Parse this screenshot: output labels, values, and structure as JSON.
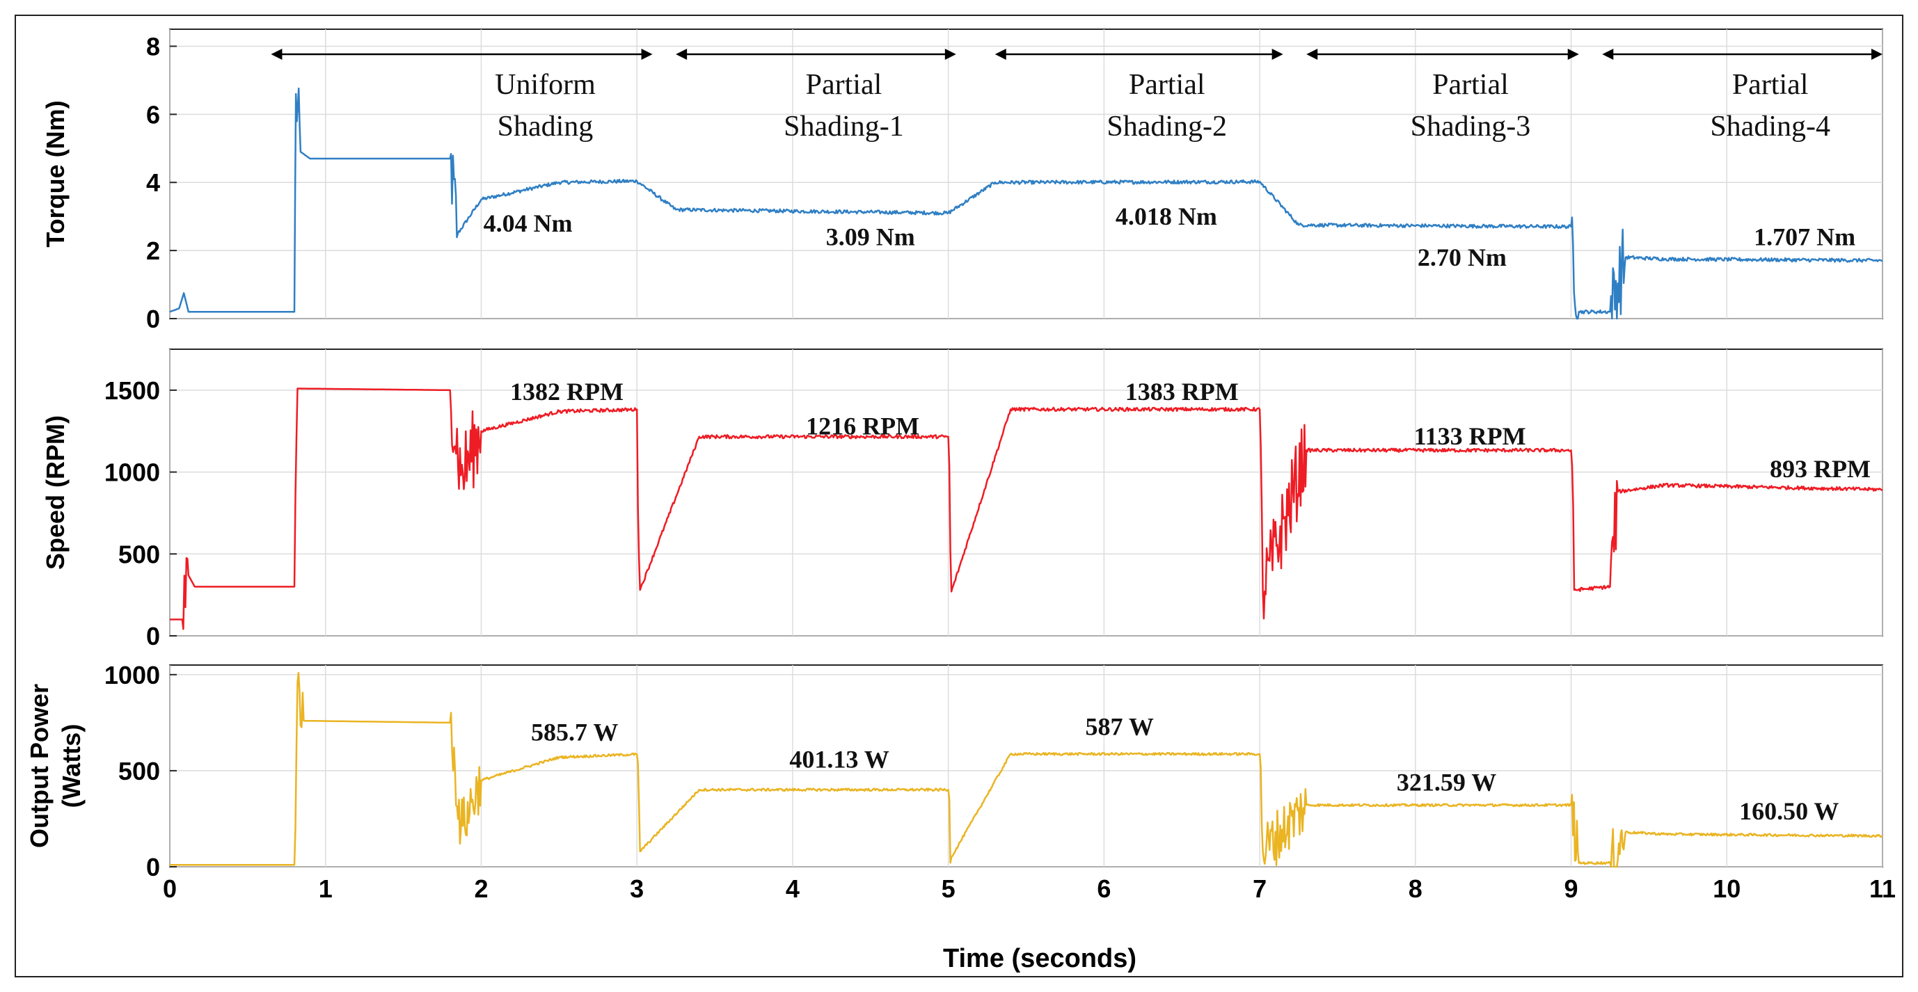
{
  "chart_data": {
    "type": "line",
    "xlabel": "Time (seconds)",
    "xlim": [
      0,
      11
    ],
    "xticks": [
      0,
      1,
      2,
      3,
      4,
      5,
      6,
      7,
      8,
      9,
      10,
      11
    ],
    "grid": true,
    "regions": [
      {
        "label_lines": [
          "Uniform",
          "Shading"
        ],
        "start": 0.65,
        "end": 3.1
      },
      {
        "label_lines": [
          "Partial",
          "Shading-1"
        ],
        "start": 3.25,
        "end": 5.05
      },
      {
        "label_lines": [
          "Partial",
          "Shading-2"
        ],
        "start": 5.3,
        "end": 7.15
      },
      {
        "label_lines": [
          "Partial",
          "Shading-3"
        ],
        "start": 7.3,
        "end": 9.05
      },
      {
        "label_lines": [
          "Partial",
          "Shading-4"
        ],
        "start": 9.2,
        "end": 11.0
      }
    ],
    "panels": [
      {
        "id": "torque",
        "ylabel_lines": [
          "Torque (Nm)"
        ],
        "ylim": [
          0,
          8.5
        ],
        "yticks": [
          0,
          2,
          4,
          6,
          8
        ],
        "color": "#2f7fc4",
        "series": {
          "name": "Torque",
          "key_points": [
            [
              0,
              0.2
            ],
            [
              0.06,
              0.3
            ],
            [
              0.09,
              0.75
            ],
            [
              0.12,
              0.2
            ],
            [
              0.8,
              0.2
            ],
            [
              0.81,
              6.6
            ],
            [
              0.84,
              4.9
            ],
            [
              0.9,
              4.7
            ],
            [
              1.8,
              4.7
            ],
            [
              1.85,
              2.5
            ],
            [
              2.0,
              3.5
            ],
            [
              2.5,
              4.0
            ],
            [
              3.0,
              4.04
            ],
            [
              3.25,
              3.2
            ],
            [
              5.0,
              3.1
            ],
            [
              5.3,
              4.0
            ],
            [
              7.0,
              4.02
            ],
            [
              7.25,
              2.75
            ],
            [
              9.0,
              2.7
            ],
            [
              9.05,
              0.2
            ],
            [
              9.25,
              0.2
            ],
            [
              9.35,
              1.8
            ],
            [
              9.6,
              1.75
            ],
            [
              11.0,
              1.707
            ]
          ]
        },
        "annotations": [
          {
            "text": "4.04 Nm",
            "x": 2.3,
            "y": 2.8
          },
          {
            "text": "3.09 Nm",
            "x": 4.5,
            "y": 2.4
          },
          {
            "text": "4.018 Nm",
            "x": 6.4,
            "y": 3.0
          },
          {
            "text": "2.70 Nm",
            "x": 8.3,
            "y": 1.8
          },
          {
            "text": "1.707 Nm",
            "x": 10.5,
            "y": 2.4
          }
        ]
      },
      {
        "id": "speed",
        "ylabel_lines": [
          "Speed (RPM)"
        ],
        "ylim": [
          0,
          1750
        ],
        "yticks": [
          0,
          500,
          1000,
          1500
        ],
        "color": "#ee1c24",
        "series": {
          "name": "Speed",
          "key_points": [
            [
              0,
              100
            ],
            [
              0.08,
              100
            ],
            [
              0.12,
              370
            ],
            [
              0.16,
              300
            ],
            [
              0.8,
              300
            ],
            [
              0.82,
              1510
            ],
            [
              1.8,
              1500
            ],
            [
              1.87,
              980
            ],
            [
              2.0,
              1250
            ],
            [
              2.5,
              1370
            ],
            [
              3.0,
              1382
            ],
            [
              3.02,
              280
            ],
            [
              3.4,
              1216
            ],
            [
              5.0,
              1216
            ],
            [
              5.02,
              270
            ],
            [
              5.4,
              1383
            ],
            [
              7.0,
              1383
            ],
            [
              7.02,
              270
            ],
            [
              7.3,
              1133
            ],
            [
              9.0,
              1133
            ],
            [
              9.02,
              280
            ],
            [
              9.25,
              300
            ],
            [
              9.3,
              880
            ],
            [
              9.6,
              920
            ],
            [
              11.0,
              893
            ]
          ]
        },
        "annotations": [
          {
            "text": "1382 RPM",
            "x": 2.55,
            "y": 1490
          },
          {
            "text": "1216 RPM",
            "x": 4.45,
            "y": 1280
          },
          {
            "text": "1383 RPM",
            "x": 6.5,
            "y": 1490
          },
          {
            "text": "1133 RPM",
            "x": 8.35,
            "y": 1220
          },
          {
            "text": "893 RPM",
            "x": 10.6,
            "y": 1020
          }
        ]
      },
      {
        "id": "power",
        "ylabel_lines": [
          "Output Power",
          "(Watts)"
        ],
        "ylim": [
          0,
          1050
        ],
        "yticks": [
          0,
          500,
          1000
        ],
        "color": "#eab422",
        "series": {
          "name": "Output Power",
          "key_points": [
            [
              0,
              10
            ],
            [
              0.8,
              10
            ],
            [
              0.82,
              960
            ],
            [
              0.86,
              760
            ],
            [
              1.8,
              750
            ],
            [
              1.87,
              200
            ],
            [
              2.0,
              450
            ],
            [
              2.5,
              570
            ],
            [
              3.0,
              585.7
            ],
            [
              3.02,
              80
            ],
            [
              3.4,
              401
            ],
            [
              5.0,
              401
            ],
            [
              5.02,
              50
            ],
            [
              5.4,
              587
            ],
            [
              7.0,
              587
            ],
            [
              7.02,
              80
            ],
            [
              7.3,
              321
            ],
            [
              9.0,
              321
            ],
            [
              9.05,
              20
            ],
            [
              9.25,
              20
            ],
            [
              9.35,
              180
            ],
            [
              9.6,
              170
            ],
            [
              11.0,
              160.5
            ]
          ]
        },
        "annotations": [
          {
            "text": "585.7 W",
            "x": 2.6,
            "y": 700
          },
          {
            "text": "401.13 W",
            "x": 4.3,
            "y": 560
          },
          {
            "text": "587 W",
            "x": 6.1,
            "y": 730
          },
          {
            "text": "321.59 W",
            "x": 8.2,
            "y": 440
          },
          {
            "text": "160.50 W",
            "x": 10.4,
            "y": 290
          }
        ]
      }
    ]
  }
}
